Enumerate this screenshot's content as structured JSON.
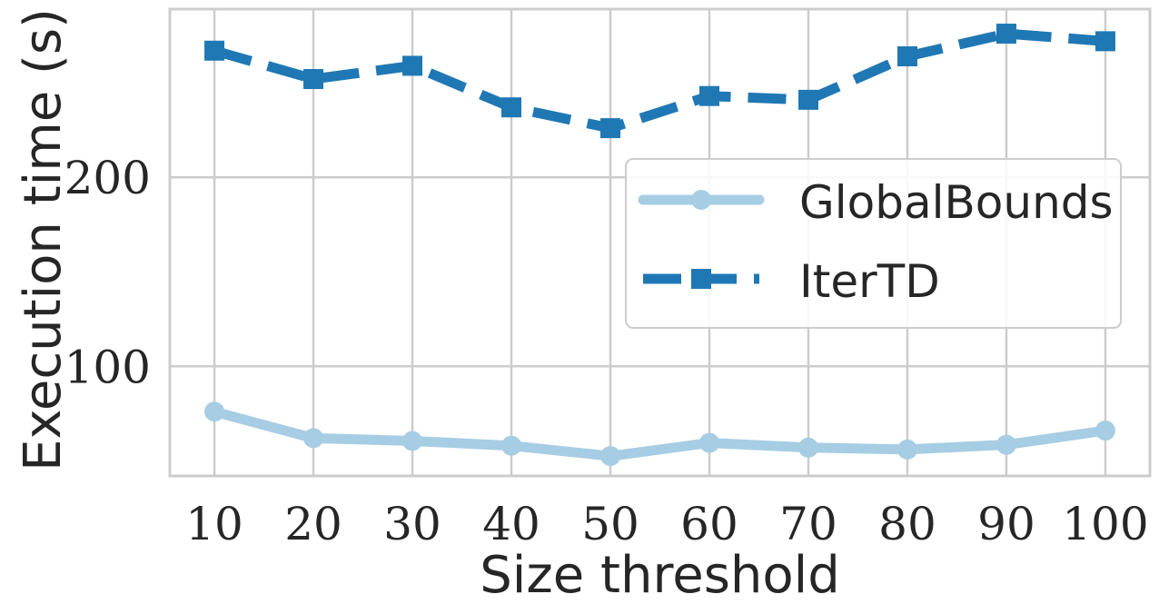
{
  "chart_data": {
    "type": "line",
    "xlabel": "Size threshold",
    "ylabel": "Execution time (s)",
    "x": [
      10,
      20,
      30,
      40,
      50,
      60,
      70,
      80,
      90,
      100
    ],
    "x_ticks": [
      "10",
      "20",
      "30",
      "40",
      "50",
      "60",
      "70",
      "80",
      "90",
      "100"
    ],
    "y_ticks": [
      100,
      200
    ],
    "ylim": [
      42,
      289
    ],
    "grid": true,
    "legend_position": "center-right",
    "series": [
      {
        "name": "GlobalBounds",
        "values": [
          76,
          62,
          60.5,
          58,
          52.5,
          59.5,
          57,
          56,
          58.5,
          66
        ],
        "color": "#a6cde3",
        "line_style": "solid",
        "marker": "circle"
      },
      {
        "name": "IterTD",
        "values": [
          267,
          252,
          259,
          237,
          226,
          243,
          241,
          264,
          276,
          272
        ],
        "color": "#1f78b4",
        "line_style": "dashed",
        "marker": "square"
      }
    ]
  }
}
